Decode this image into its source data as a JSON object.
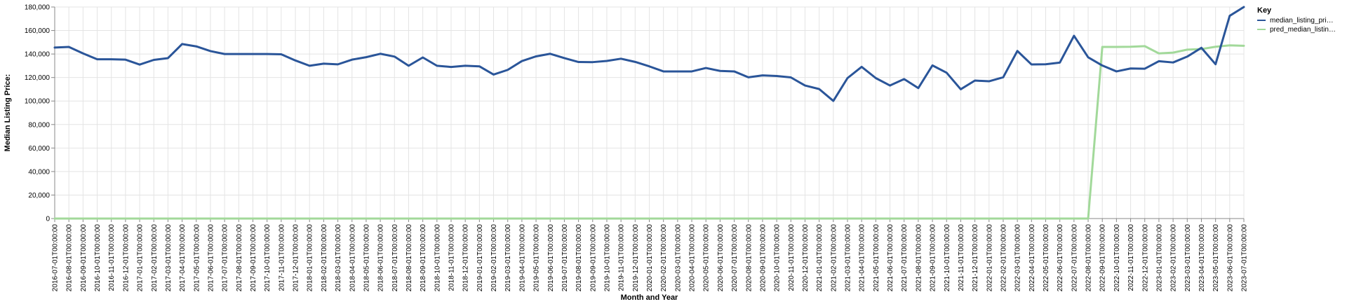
{
  "chart_data": {
    "type": "line",
    "xlabel": "Month and Year",
    "ylabel": "Median Listing Price:",
    "ylim": [
      0,
      180000
    ],
    "yticks": [
      0,
      20000,
      40000,
      60000,
      80000,
      100000,
      120000,
      140000,
      160000,
      180000
    ],
    "ytick_labels": [
      "0",
      "20,000",
      "40,000",
      "60,000",
      "80,000",
      "100,000",
      "120,000",
      "140,000",
      "160,000",
      "180,000"
    ],
    "grid": true,
    "legend": {
      "title": "Key",
      "position": "top-right",
      "entries": [
        "median_listing_pri…",
        "pred_median_listin…"
      ]
    },
    "x": [
      "2016-07-01T00:00:00",
      "2016-08-01T00:00:00",
      "2016-09-01T00:00:00",
      "2016-10-01T00:00:00",
      "2016-11-01T00:00:00",
      "2016-12-01T00:00:00",
      "2017-01-01T00:00:00",
      "2017-02-01T00:00:00",
      "2017-03-01T00:00:00",
      "2017-04-01T00:00:00",
      "2017-05-01T00:00:00",
      "2017-06-01T00:00:00",
      "2017-07-01T00:00:00",
      "2017-08-01T00:00:00",
      "2017-09-01T00:00:00",
      "2017-10-01T00:00:00",
      "2017-11-01T00:00:00",
      "2017-12-01T00:00:00",
      "2018-01-01T00:00:00",
      "2018-02-01T00:00:00",
      "2018-03-01T00:00:00",
      "2018-04-01T00:00:00",
      "2018-05-01T00:00:00",
      "2018-06-01T00:00:00",
      "2018-07-01T00:00:00",
      "2018-08-01T00:00:00",
      "2018-09-01T00:00:00",
      "2018-10-01T00:00:00",
      "2018-11-01T00:00:00",
      "2018-12-01T00:00:00",
      "2019-01-01T00:00:00",
      "2019-02-01T00:00:00",
      "2019-03-01T00:00:00",
      "2019-04-01T00:00:00",
      "2019-05-01T00:00:00",
      "2019-06-01T00:00:00",
      "2019-07-01T00:00:00",
      "2019-08-01T00:00:00",
      "2019-09-01T00:00:00",
      "2019-10-01T00:00:00",
      "2019-11-01T00:00:00",
      "2019-12-01T00:00:00",
      "2020-01-01T00:00:00",
      "2020-02-01T00:00:00",
      "2020-03-01T00:00:00",
      "2020-04-01T00:00:00",
      "2020-05-01T00:00:00",
      "2020-06-01T00:00:00",
      "2020-07-01T00:00:00",
      "2020-08-01T00:00:00",
      "2020-09-01T00:00:00",
      "2020-10-01T00:00:00",
      "2020-11-01T00:00:00",
      "2020-12-01T00:00:00",
      "2021-01-01T00:00:00",
      "2021-02-01T00:00:00",
      "2021-03-01T00:00:00",
      "2021-04-01T00:00:00",
      "2021-05-01T00:00:00",
      "2021-06-01T00:00:00",
      "2021-07-01T00:00:00",
      "2021-08-01T00:00:00",
      "2021-09-01T00:00:00",
      "2021-10-01T00:00:00",
      "2021-11-01T00:00:00",
      "2021-12-01T00:00:00",
      "2022-01-01T00:00:00",
      "2022-02-01T00:00:00",
      "2022-03-01T00:00:00",
      "2022-04-01T00:00:00",
      "2022-05-01T00:00:00",
      "2022-06-01T00:00:00",
      "2022-07-01T00:00:00",
      "2022-08-01T00:00:00",
      "2022-09-01T00:00:00",
      "2022-10-01T00:00:00",
      "2022-11-01T00:00:00",
      "2022-12-01T00:00:00",
      "2023-01-01T00:00:00",
      "2023-02-01T00:00:00",
      "2023-03-01T00:00:00",
      "2023-04-01T00:00:00",
      "2023-05-01T00:00:00",
      "2023-06-01T00:00:00",
      "2023-07-01T00:00:00"
    ],
    "series": [
      {
        "name": "median_listing_pri…",
        "color": "#2a5599",
        "values": [
          145500,
          146000,
          140500,
          135500,
          135500,
          135200,
          131000,
          135000,
          136500,
          148500,
          146500,
          142500,
          140000,
          140000,
          140000,
          140000,
          139800,
          134500,
          130000,
          131800,
          131200,
          135200,
          137300,
          140200,
          137800,
          130000,
          137100,
          130000,
          129000,
          130000,
          129500,
          122500,
          126500,
          134000,
          138000,
          140200,
          136500,
          133200,
          133100,
          134100,
          136000,
          133300,
          129500,
          125200,
          125200,
          125200,
          128100,
          125600,
          125200,
          120200,
          121800,
          121300,
          120100,
          113200,
          110200,
          100100,
          119500,
          129100,
          119500,
          113200,
          118700,
          111000,
          130300,
          124100,
          110000,
          117400,
          116800,
          120200,
          142600,
          131100,
          131300,
          132700,
          155500,
          137200,
          130200,
          125200,
          127700,
          127500,
          133900,
          132800,
          137800,
          145300,
          131300,
          172500,
          180000
        ]
      },
      {
        "name": "pred_median_listin…",
        "color": "#a2d99a",
        "values": [
          0,
          0,
          0,
          0,
          0,
          0,
          0,
          0,
          0,
          0,
          0,
          0,
          0,
          0,
          0,
          0,
          0,
          0,
          0,
          0,
          0,
          0,
          0,
          0,
          0,
          0,
          0,
          0,
          0,
          0,
          0,
          0,
          0,
          0,
          0,
          0,
          0,
          0,
          0,
          0,
          0,
          0,
          0,
          0,
          0,
          0,
          0,
          0,
          0,
          0,
          0,
          0,
          0,
          0,
          0,
          0,
          0,
          0,
          0,
          0,
          0,
          0,
          0,
          0,
          0,
          0,
          0,
          0,
          0,
          0,
          0,
          0,
          0,
          0,
          146000,
          146000,
          146200,
          146700,
          140500,
          141200,
          143700,
          144200,
          146200,
          147400,
          147000
        ]
      }
    ]
  }
}
